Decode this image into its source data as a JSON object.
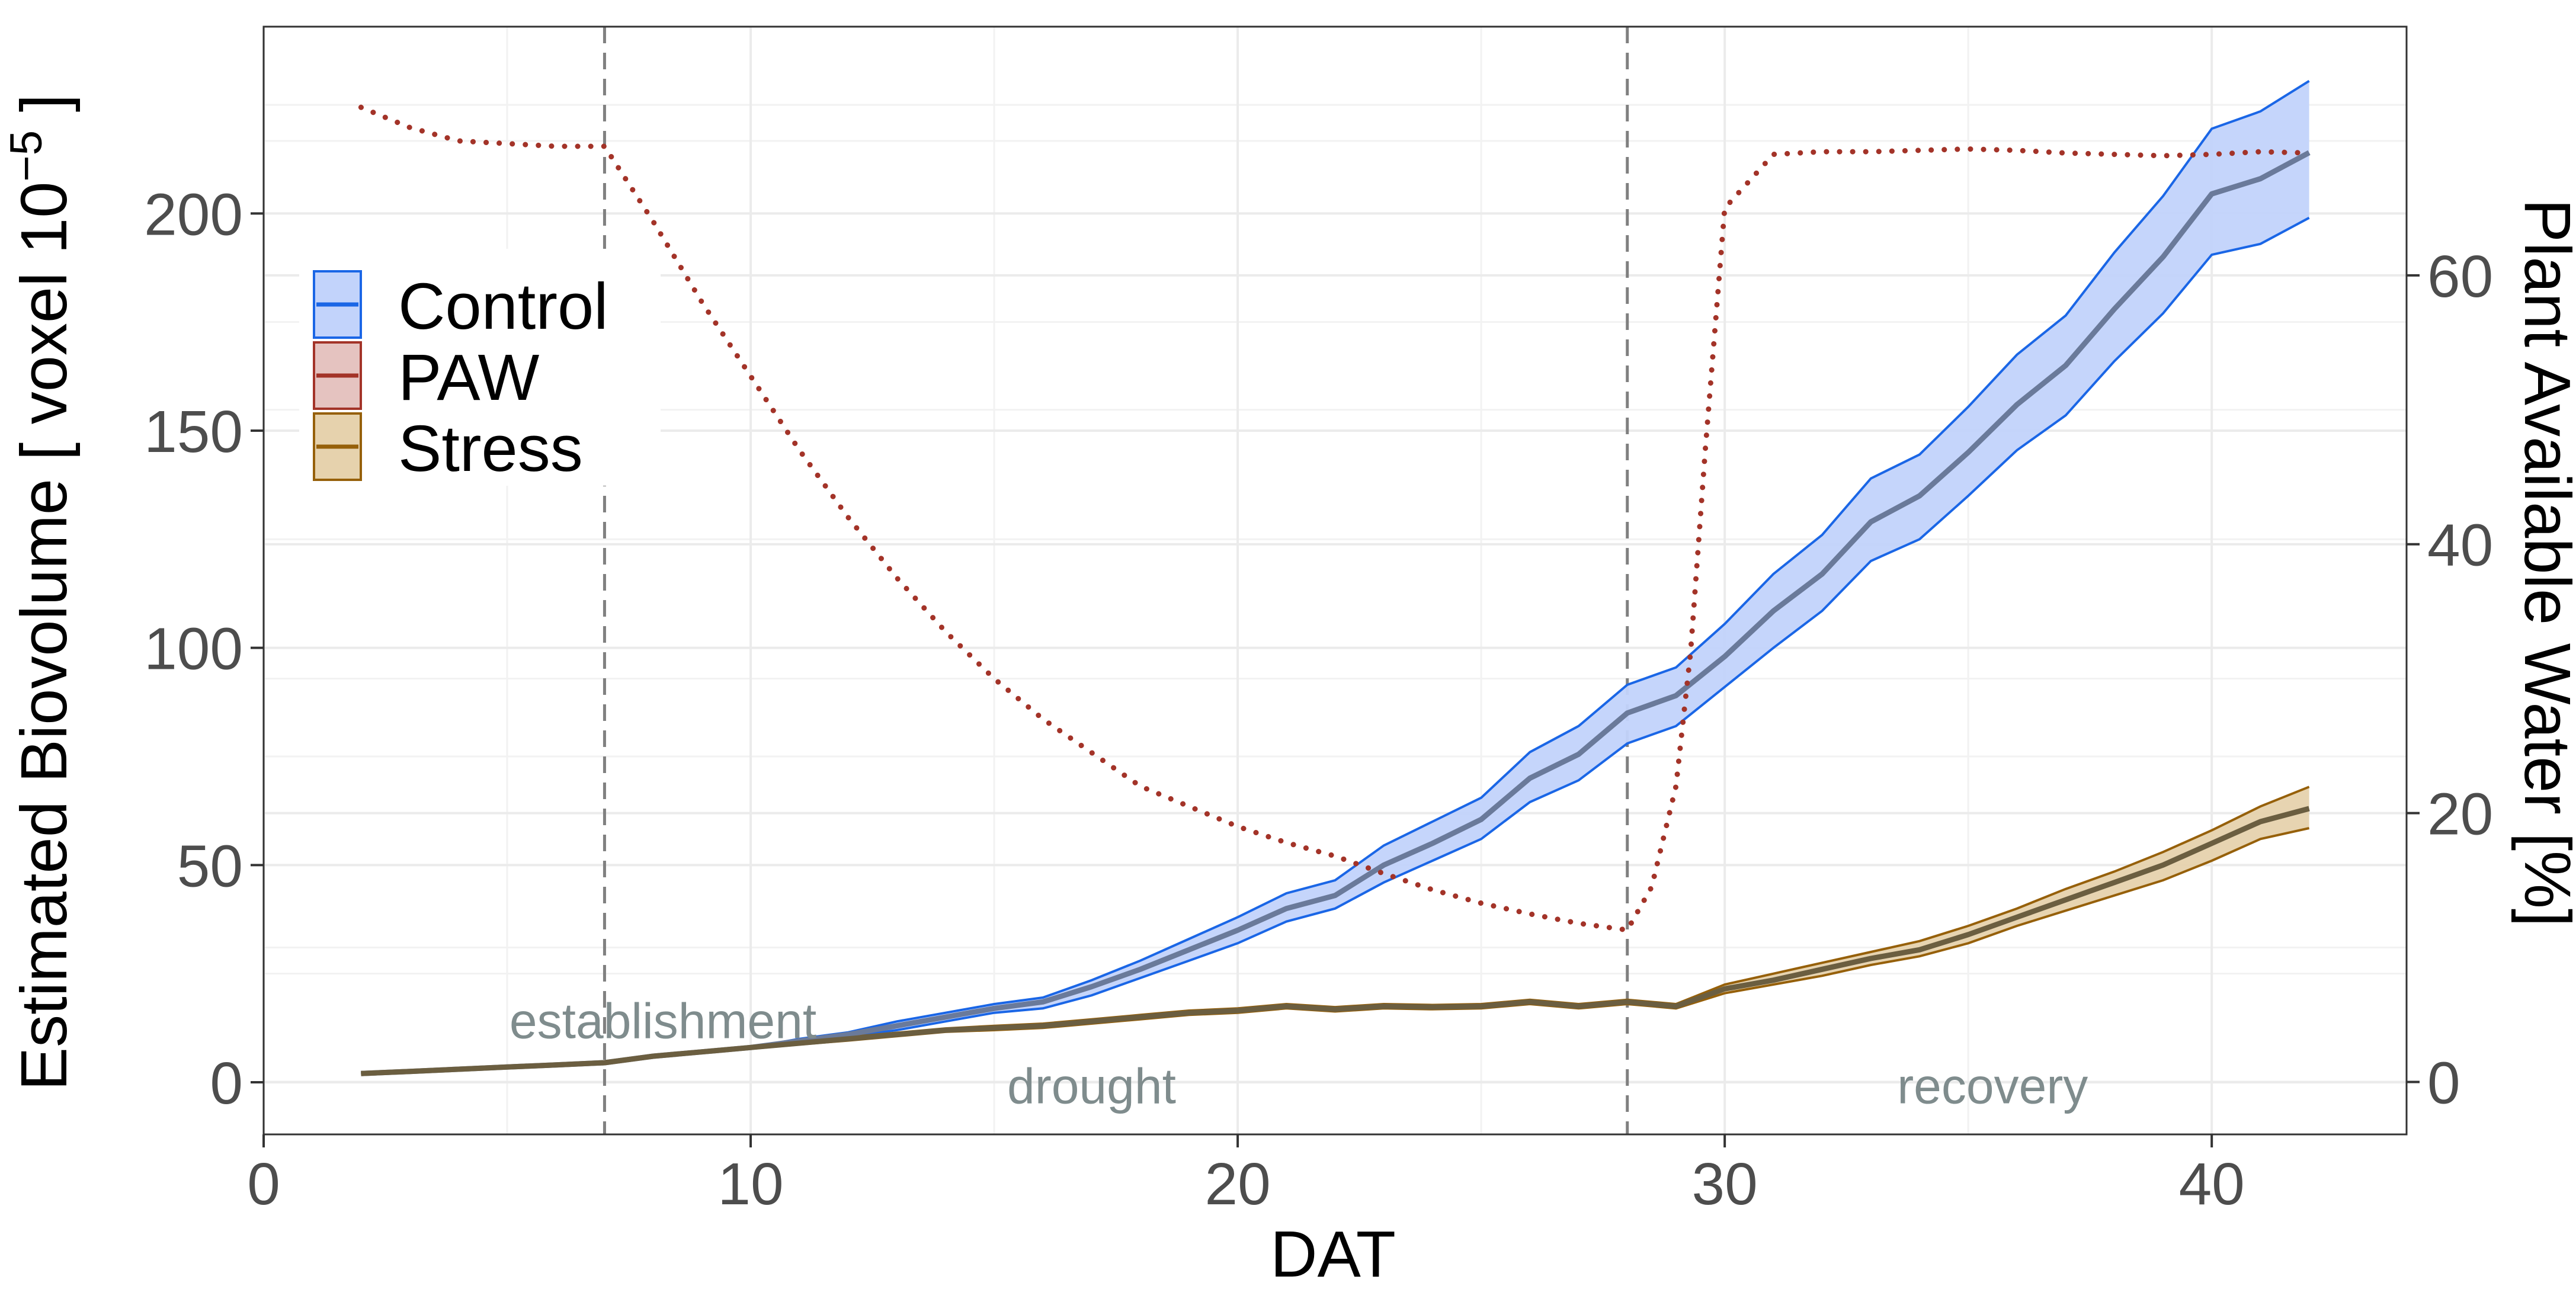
{
  "chart_data": {
    "type": "line",
    "xlabel": "DAT",
    "ylabel_prefix": "Estimated Biovolume [ voxel 10",
    "ylabel_exp": "−5",
    "ylabel_suffix": " ]",
    "y2label": "Plant Available Water [%]",
    "xlim": [
      0,
      44
    ],
    "ylim": [
      -12,
      243
    ],
    "y2lim": [
      -3.9,
      78.5
    ],
    "x_ticks": [
      0,
      10,
      20,
      30,
      40
    ],
    "x_tick_labels": [
      "0",
      "10",
      "20",
      "30",
      "40"
    ],
    "y_ticks": [
      0,
      50,
      100,
      150,
      200
    ],
    "y_tick_labels": [
      "0",
      "50",
      "100",
      "150",
      "200"
    ],
    "y2_ticks": [
      0,
      20,
      40,
      60
    ],
    "y2_tick_labels": [
      "0",
      "20",
      "40",
      "60"
    ],
    "grid": true,
    "phase_boundaries": [
      7,
      28
    ],
    "phases": [
      {
        "label": "establishment",
        "x": 8.2,
        "y": 14
      },
      {
        "label": "drought",
        "x": 17,
        "y": -1
      },
      {
        "label": "recovery",
        "x": 35.5,
        "y": -1
      }
    ],
    "legend": {
      "position": "top-left",
      "items": [
        {
          "key": "control",
          "label": "Control",
          "fill": "#c2d3fb",
          "stroke": "#1a66e6"
        },
        {
          "key": "paw",
          "label": "PAW",
          "fill": "#e5c3c0",
          "stroke": "#a33328"
        },
        {
          "key": "stress",
          "label": "Stress",
          "fill": "#e6d2ad",
          "stroke": "#96600a"
        }
      ]
    },
    "series": [
      {
        "name": "Control",
        "color": "#1a66e6",
        "fill": "#c2d3fb",
        "mean_color": "#6a7a9a",
        "x": [
          2,
          3,
          4,
          5,
          6,
          7,
          8,
          9,
          10,
          11,
          12,
          13,
          14,
          15,
          16,
          17,
          18,
          19,
          20,
          21,
          22,
          23,
          24,
          25,
          26,
          27,
          28,
          29,
          30,
          31,
          32,
          33,
          34,
          35,
          36,
          37,
          38,
          39,
          40,
          41,
          42
        ],
        "mean": [
          2,
          2.5,
          3,
          3.5,
          4,
          4.5,
          6,
          7,
          8,
          9.5,
          11,
          13,
          15,
          17,
          18.5,
          22,
          26,
          30.5,
          35,
          40,
          43,
          50,
          55,
          60.5,
          70,
          75.5,
          85,
          89,
          98,
          108.5,
          117,
          129,
          135,
          145,
          156,
          165,
          178,
          190,
          204.5,
          208,
          214
        ],
        "lower": [
          2,
          2.5,
          3,
          3.5,
          4,
          4.5,
          6,
          7,
          8,
          9,
          10.5,
          12,
          14,
          16,
          17,
          20,
          24,
          28,
          32,
          37,
          40,
          46,
          51,
          56,
          64.5,
          69.5,
          78,
          82,
          91,
          100,
          108.5,
          120,
          125,
          135,
          145.5,
          153.5,
          166,
          177,
          190.5,
          193,
          199
        ],
        "upper": [
          2,
          2.5,
          3,
          3.5,
          4,
          4.5,
          6,
          7,
          8,
          10,
          11.5,
          14,
          16,
          18,
          19.5,
          23.5,
          28,
          33,
          38,
          43.5,
          46.5,
          54.5,
          60,
          65.5,
          76,
          82,
          91.5,
          95.5,
          105.5,
          117,
          126,
          139,
          144.5,
          155.5,
          167.5,
          176.5,
          191,
          204,
          219.5,
          223.5,
          230.5
        ]
      },
      {
        "name": "Stress",
        "color": "#96600a",
        "fill": "#e6d2ad",
        "mean_color": "#6b5e40",
        "x": [
          2,
          3,
          4,
          5,
          6,
          7,
          8,
          9,
          10,
          11,
          12,
          13,
          14,
          15,
          16,
          17,
          18,
          19,
          20,
          21,
          22,
          23,
          24,
          25,
          26,
          27,
          28,
          29,
          30,
          31,
          32,
          33,
          34,
          35,
          36,
          37,
          38,
          39,
          40,
          41,
          42
        ],
        "mean": [
          2,
          2.5,
          3,
          3.5,
          4,
          4.5,
          6,
          7,
          8,
          9,
          10,
          11,
          12,
          12.5,
          13,
          14,
          15,
          16,
          16.5,
          17.5,
          16.8,
          17.5,
          17.3,
          17.5,
          18.5,
          17.5,
          18.5,
          17.5,
          21.5,
          23.5,
          26,
          28.5,
          30.5,
          34,
          38,
          42,
          46,
          50,
          55,
          60,
          63
        ],
        "lower": [
          1.8,
          2.3,
          2.8,
          3.3,
          3.8,
          4.2,
          5.7,
          6.7,
          7.7,
          8.7,
          9.6,
          10.6,
          11.6,
          12,
          12.5,
          13.5,
          14.5,
          15.5,
          16,
          17,
          16.3,
          17,
          16.8,
          17,
          18,
          17,
          18,
          17,
          20.5,
          22.5,
          24.5,
          27,
          29,
          32,
          36,
          39.5,
          43,
          46.5,
          51,
          56,
          58.5
        ],
        "upper": [
          2.2,
          2.7,
          3.2,
          3.7,
          4.2,
          4.8,
          6.3,
          7.3,
          8.3,
          9.3,
          10.4,
          11.4,
          12.4,
          13,
          13.5,
          14.5,
          15.5,
          16.5,
          17,
          18,
          17.3,
          18,
          17.8,
          18,
          19,
          18,
          19,
          18,
          22.5,
          25,
          27.5,
          30,
          32.5,
          36,
          40,
          44.5,
          48.5,
          53,
          58,
          63.5,
          68
        ]
      },
      {
        "name": "PAW",
        "color": "#a33328",
        "axis": "right",
        "style": "dotted",
        "x": [
          2,
          3,
          4,
          5,
          6,
          7,
          8,
          9,
          10,
          11,
          12,
          13,
          14,
          15,
          16,
          17,
          18,
          19,
          20,
          21,
          22,
          23,
          24,
          25,
          26,
          27,
          28,
          28.5,
          29,
          29.3,
          29.6,
          30,
          31,
          32,
          33,
          34,
          35,
          36,
          37,
          38,
          39,
          40,
          41,
          42
        ],
        "values": [
          72.5,
          71,
          70,
          69.8,
          69.6,
          69.6,
          64,
          58,
          52.5,
          47,
          42,
          37.5,
          33.5,
          30,
          27,
          24.5,
          22,
          20.5,
          19,
          17.8,
          16.8,
          15.5,
          14.3,
          13.3,
          12.5,
          11.8,
          11.3,
          14.5,
          22,
          32,
          47,
          65,
          69,
          69.2,
          69.2,
          69.3,
          69.4,
          69.3,
          69.1,
          69,
          68.9,
          69,
          69.2,
          69.1
        ]
      }
    ]
  }
}
